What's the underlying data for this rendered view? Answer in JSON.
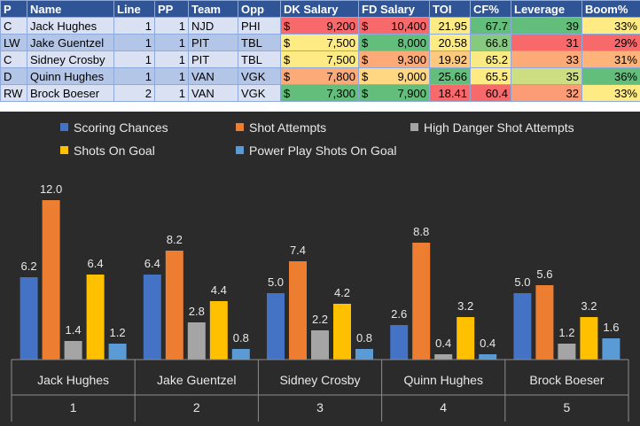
{
  "table": {
    "headers": [
      "P",
      "Name",
      "Line",
      "PP",
      "Team",
      "Opp",
      "DK Salary",
      "FD Salary",
      "TOI",
      "CF%",
      "Leverage",
      "Boom%"
    ],
    "currency_symbol": "$",
    "rows": [
      {
        "pos": "C",
        "name": "Jack Hughes",
        "line": "1",
        "pp": "1",
        "team": "NJD",
        "opp": "PHI",
        "dk": "9,200",
        "fd": "10,400",
        "toi": "21.95",
        "cf": "67.7",
        "leverage": "39",
        "boom": "33%"
      },
      {
        "pos": "LW",
        "name": "Jake Guentzel",
        "line": "1",
        "pp": "1",
        "team": "PIT",
        "opp": "TBL",
        "dk": "7,500",
        "fd": "8,000",
        "toi": "20.58",
        "cf": "66.8",
        "leverage": "31",
        "boom": "29%"
      },
      {
        "pos": "C",
        "name": "Sidney Crosby",
        "line": "1",
        "pp": "1",
        "team": "PIT",
        "opp": "TBL",
        "dk": "7,500",
        "fd": "9,300",
        "toi": "19.92",
        "cf": "65.2",
        "leverage": "33",
        "boom": "31%"
      },
      {
        "pos": "D",
        "name": "Quinn Hughes",
        "line": "1",
        "pp": "1",
        "team": "VAN",
        "opp": "VGK",
        "dk": "7,800",
        "fd": "9,000",
        "toi": "25.66",
        "cf": "65.5",
        "leverage": "35",
        "boom": "36%"
      },
      {
        "pos": "RW",
        "name": "Brock Boeser",
        "line": "2",
        "pp": "1",
        "team": "VAN",
        "opp": "VGK",
        "dk": "7,300",
        "fd": "7,900",
        "toi": "18.41",
        "cf": "60.4",
        "leverage": "32",
        "boom": "33%"
      }
    ],
    "cell_colors": [
      {
        "dk": "#f8696b",
        "fd": "#f8696b",
        "toi": "#ffeb84",
        "cf": "#63be7b",
        "leverage": "#63be7b",
        "boom": "#ffeb84"
      },
      {
        "dk": "#ffeb84",
        "fd": "#63be7b",
        "toi": "#ffeb84",
        "cf": "#87c97e",
        "leverage": "#f8696b",
        "boom": "#f8696b"
      },
      {
        "dk": "#ffeb84",
        "fd": "#fcaa78",
        "toi": "#fdc97e",
        "cf": "#f9ea84",
        "leverage": "#fcaa78",
        "boom": "#fdb37a"
      },
      {
        "dk": "#fcaa78",
        "fd": "#ffd682",
        "toi": "#63be7b",
        "cf": "#ffeb84",
        "leverage": "#cddd82",
        "boom": "#63be7b"
      },
      {
        "dk": "#63be7b",
        "fd": "#63be7b",
        "toi": "#f8696b",
        "cf": "#f8696b",
        "leverage": "#fb9c76",
        "boom": "#ffeb84"
      }
    ]
  },
  "chart_data": {
    "type": "bar",
    "categories": [
      {
        "name": "Jack Hughes",
        "line": "1"
      },
      {
        "name": "Jake Guentzel",
        "line": "2"
      },
      {
        "name": "Sidney Crosby",
        "line": "3"
      },
      {
        "name": "Quinn Hughes",
        "line": "4"
      },
      {
        "name": "Brock Boeser",
        "line": "5"
      }
    ],
    "series": [
      {
        "name": "Scoring Chances",
        "color": "#4472c4",
        "values": [
          6.2,
          6.4,
          5.0,
          2.6,
          5.0
        ],
        "labels": [
          "6.2",
          "6.4",
          "5.0",
          "2.6",
          "5.0"
        ]
      },
      {
        "name": "Shot Attempts",
        "color": "#ed7d31",
        "values": [
          12.0,
          8.2,
          7.4,
          8.8,
          5.6
        ],
        "labels": [
          "12.0",
          "8.2",
          "7.4",
          "8.8",
          "5.6"
        ]
      },
      {
        "name": "High Danger Shot Attempts",
        "color": "#a5a5a5",
        "values": [
          1.4,
          2.8,
          2.2,
          0.4,
          1.2
        ],
        "labels": [
          "1.4",
          "2.8",
          "2.2",
          "0.4",
          "1.2"
        ]
      },
      {
        "name": "Shots On Goal",
        "color": "#ffc000",
        "values": [
          6.4,
          4.4,
          4.2,
          3.2,
          3.2
        ],
        "labels": [
          "6.4",
          "4.4",
          "4.2",
          "3.2",
          "3.2"
        ]
      },
      {
        "name": "Power Play Shots On Goal",
        "color": "#5b9bd5",
        "values": [
          1.2,
          0.8,
          0.8,
          0.4,
          1.6
        ],
        "labels": [
          "1.2",
          "0.8",
          "0.8",
          "0.4",
          "1.6"
        ]
      }
    ],
    "ylim": [
      0,
      12.0
    ],
    "title": "",
    "xlabel": "",
    "ylabel": "",
    "grid": false,
    "legend": "top"
  }
}
